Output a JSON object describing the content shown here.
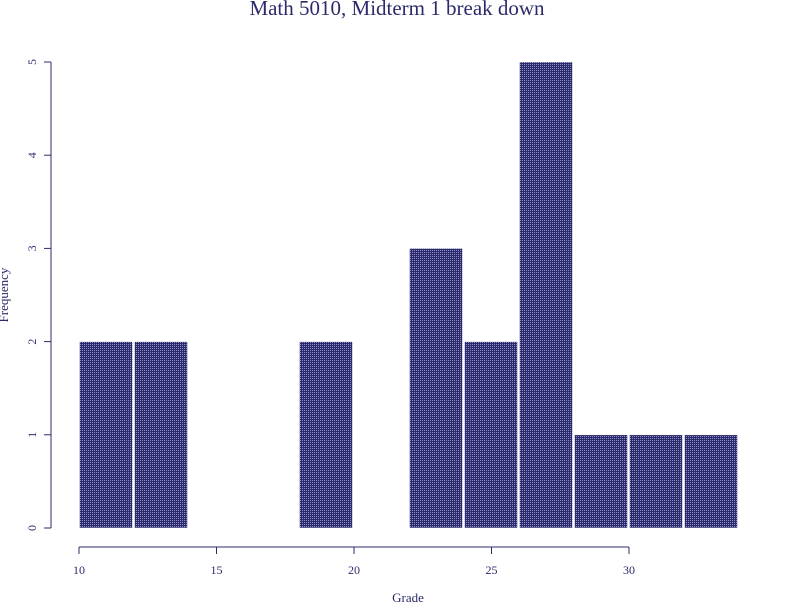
{
  "chart_data": {
    "type": "bar",
    "title": "Math 5010, Midterm 1 break down",
    "xlabel": "Grade",
    "ylabel": "Frequency",
    "bins": [
      {
        "start": 10,
        "end": 12,
        "count": 2
      },
      {
        "start": 12,
        "end": 14,
        "count": 2
      },
      {
        "start": 14,
        "end": 16,
        "count": 0
      },
      {
        "start": 16,
        "end": 18,
        "count": 0
      },
      {
        "start": 18,
        "end": 20,
        "count": 2
      },
      {
        "start": 20,
        "end": 22,
        "count": 0
      },
      {
        "start": 22,
        "end": 24,
        "count": 3
      },
      {
        "start": 24,
        "end": 26,
        "count": 2
      },
      {
        "start": 26,
        "end": 28,
        "count": 5
      },
      {
        "start": 28,
        "end": 30,
        "count": 1
      },
      {
        "start": 30,
        "end": 32,
        "count": 1
      },
      {
        "start": 32,
        "end": 34,
        "count": 1
      }
    ],
    "xlim": [
      10,
      34
    ],
    "ylim": [
      0,
      5
    ],
    "xticks": [
      10,
      15,
      20,
      25,
      30
    ],
    "yticks": [
      0,
      1,
      2,
      3,
      4,
      5
    ],
    "grid": false,
    "legend": "none",
    "bar_color": "#2b2b6b"
  }
}
